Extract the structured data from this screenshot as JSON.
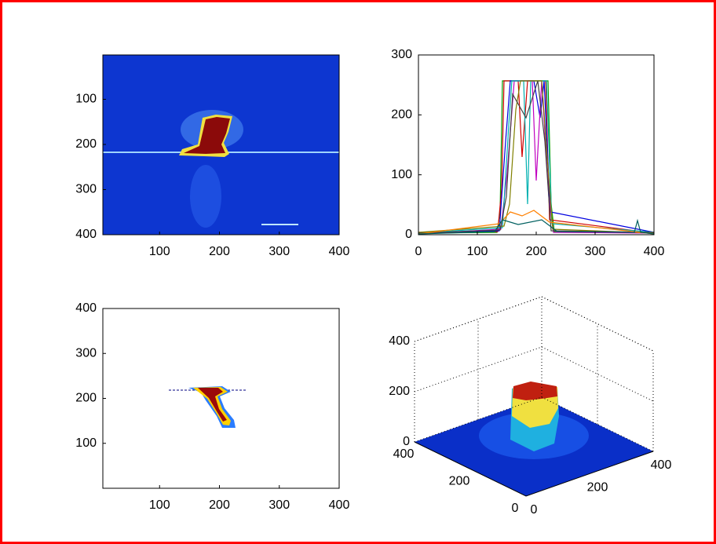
{
  "chart_data": [
    {
      "type": "image",
      "xlim": [
        0,
        400
      ],
      "ylim": [
        0,
        400
      ],
      "y_reversed": true,
      "xticks": [
        100,
        200,
        300,
        400
      ],
      "yticks": [
        100,
        200,
        300,
        400
      ]
    },
    {
      "type": "line",
      "xlim": [
        0,
        400
      ],
      "ylim": [
        0,
        300
      ],
      "xticks": [
        0,
        100,
        200,
        300,
        400
      ],
      "yticks": [
        0,
        100,
        200,
        300
      ]
    },
    {
      "type": "contour",
      "xlim": [
        0,
        400
      ],
      "ylim": [
        0,
        400
      ],
      "xticks": [
        100,
        200,
        300,
        400
      ],
      "yticks": [
        100,
        200,
        300,
        400
      ]
    },
    {
      "type": "surface",
      "xlim": [
        0,
        400
      ],
      "ylim": [
        0,
        400
      ],
      "zlim": [
        0,
        400
      ],
      "xticks": [
        0,
        200,
        400
      ],
      "yticks": [
        0,
        200,
        400
      ],
      "zticks": [
        0,
        200,
        400
      ]
    }
  ]
}
